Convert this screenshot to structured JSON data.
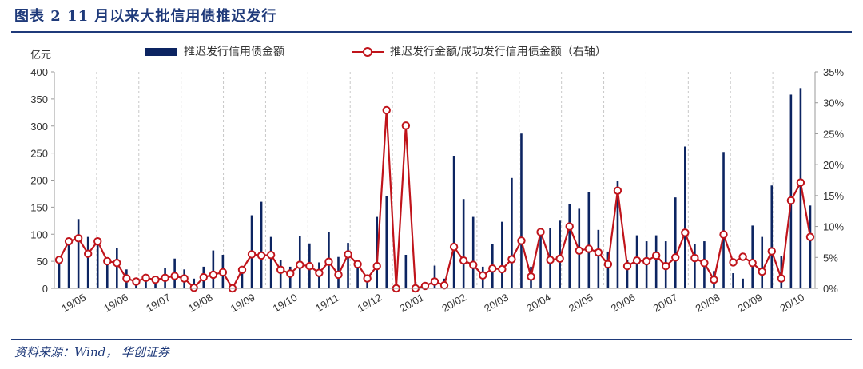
{
  "title": "图表 2   11 月以来大批信用债推迟发行",
  "source": "资料来源：Wind， 华创证券",
  "chart_data": {
    "type": "bar+line",
    "y_left_unit": "亿元",
    "y_left_lim": [
      0,
      400
    ],
    "y_left_ticks": [
      "0",
      "50",
      "100",
      "150",
      "200",
      "250",
      "300",
      "350",
      "400"
    ],
    "y_right_lim": [
      0,
      35
    ],
    "y_right_ticks": [
      "0%",
      "5%",
      "10%",
      "15%",
      "20%",
      "25%",
      "30%",
      "35%"
    ],
    "x_labels": [
      "19/05",
      "19/06",
      "19/07",
      "19/08",
      "19/09",
      "19/10",
      "19/11",
      "19/12",
      "20/01",
      "20/02",
      "20/03",
      "20/04",
      "20/05",
      "20/06",
      "20/07",
      "20/08",
      "20/09",
      "20/10"
    ],
    "grid": "vertical dashed",
    "series": [
      {
        "name": "推迟发行信用债金额",
        "type": "bar",
        "color": "#0c2461",
        "values": [
          45,
          85,
          128,
          95,
          90,
          52,
          75,
          35,
          20,
          25,
          18,
          38,
          55,
          35,
          18,
          40,
          70,
          62,
          8,
          38,
          135,
          160,
          95,
          52,
          40,
          97,
          83,
          48,
          104,
          58,
          84,
          48,
          24,
          132,
          170,
          8,
          62,
          12,
          10,
          42,
          18,
          245,
          165,
          132,
          40,
          82,
          123,
          204,
          286,
          40,
          105,
          112,
          125,
          155,
          147,
          178,
          108,
          68,
          198,
          52,
          98,
          87,
          98,
          87,
          168,
          262,
          82,
          87,
          32,
          252,
          28,
          18,
          116,
          95,
          190,
          60,
          358,
          370,
          153
        ]
      },
      {
        "name": "推迟发行金额/成功发行信用债金额（右轴）",
        "type": "line",
        "axis": "right",
        "color": "#c0141b",
        "values": [
          4.6,
          7.6,
          8.1,
          5.6,
          7.6,
          4.4,
          4.1,
          1.6,
          1.1,
          1.7,
          1.4,
          1.7,
          2.0,
          1.6,
          0.1,
          1.8,
          2.2,
          2.6,
          0.0,
          3.0,
          5.5,
          5.3,
          5.4,
          3.0,
          2.4,
          3.8,
          3.6,
          2.5,
          4.3,
          2.2,
          5.5,
          3.9,
          1.6,
          3.6,
          28.8,
          0.0,
          26.3,
          0.0,
          0.4,
          1.1,
          0.5,
          6.7,
          4.5,
          3.8,
          2.1,
          3.2,
          3.1,
          4.7,
          7.7,
          1.9,
          9.1,
          4.6,
          4.8,
          10.0,
          6.1,
          6.4,
          5.8,
          3.9,
          15.8,
          3.6,
          4.5,
          4.4,
          5.3,
          3.6,
          5.0,
          9.0,
          4.9,
          4.1,
          1.4,
          8.7,
          4.2,
          5.1,
          4.1,
          2.7,
          6.0,
          1.6,
          14.2,
          17.1,
          8.3
        ]
      }
    ]
  }
}
